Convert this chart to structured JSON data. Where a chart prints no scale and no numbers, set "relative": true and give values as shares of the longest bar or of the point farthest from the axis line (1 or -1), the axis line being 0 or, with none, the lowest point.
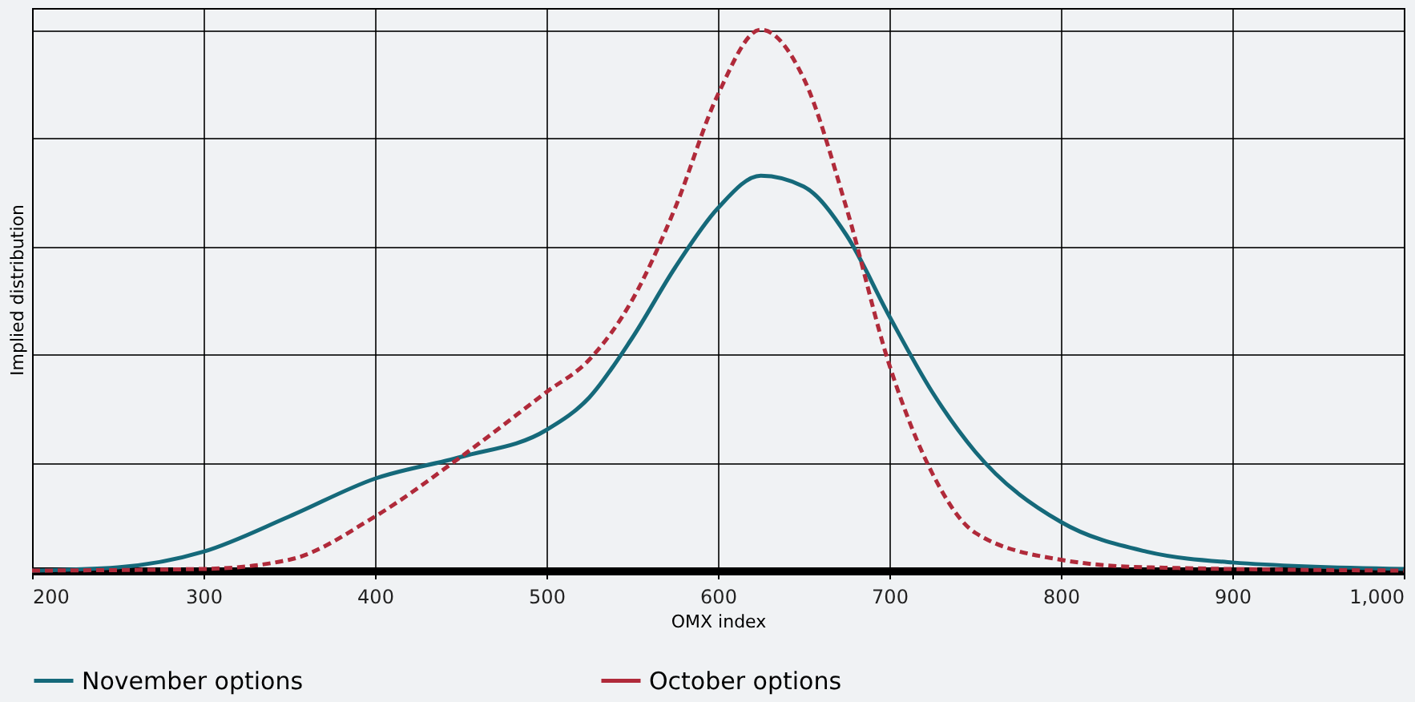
{
  "chart_data": {
    "type": "line",
    "relative": true,
    "xlabel": "OMX index",
    "ylabel": "Implied distribution",
    "xlim": [
      200,
      1000
    ],
    "xticks": [
      200,
      300,
      400,
      500,
      600,
      700,
      800,
      900,
      {
        "value": 1000,
        "label": "1,000"
      }
    ],
    "grid": true,
    "legend": "bottom",
    "series": [
      {
        "name": "November options",
        "color": "#15697a",
        "line_style": "solid",
        "x": [
          200,
          250,
          300,
          350,
          400,
          450,
          500,
          525,
          550,
          575,
          600,
          625,
          650,
          675,
          700,
          725,
          750,
          800,
          850,
          900,
          1000
        ],
        "values": [
          0,
          0.006,
          0.035,
          0.1,
          0.17,
          0.21,
          0.26,
          0.32,
          0.43,
          0.56,
          0.67,
          0.73,
          0.71,
          0.62,
          0.47,
          0.33,
          0.22,
          0.09,
          0.035,
          0.015,
          0.003
        ]
      },
      {
        "name": "October options",
        "color": "#b02a3a",
        "line_style": "dashed",
        "x": [
          200,
          300,
          350,
          400,
          450,
          500,
          525,
          550,
          575,
          600,
          625,
          650,
          675,
          700,
          725,
          750,
          800,
          850,
          1000
        ],
        "values": [
          0,
          0.003,
          0.02,
          0.1,
          0.21,
          0.33,
          0.39,
          0.5,
          0.67,
          0.88,
          1.0,
          0.91,
          0.67,
          0.38,
          0.18,
          0.07,
          0.02,
          0.006,
          0
        ]
      }
    ]
  }
}
